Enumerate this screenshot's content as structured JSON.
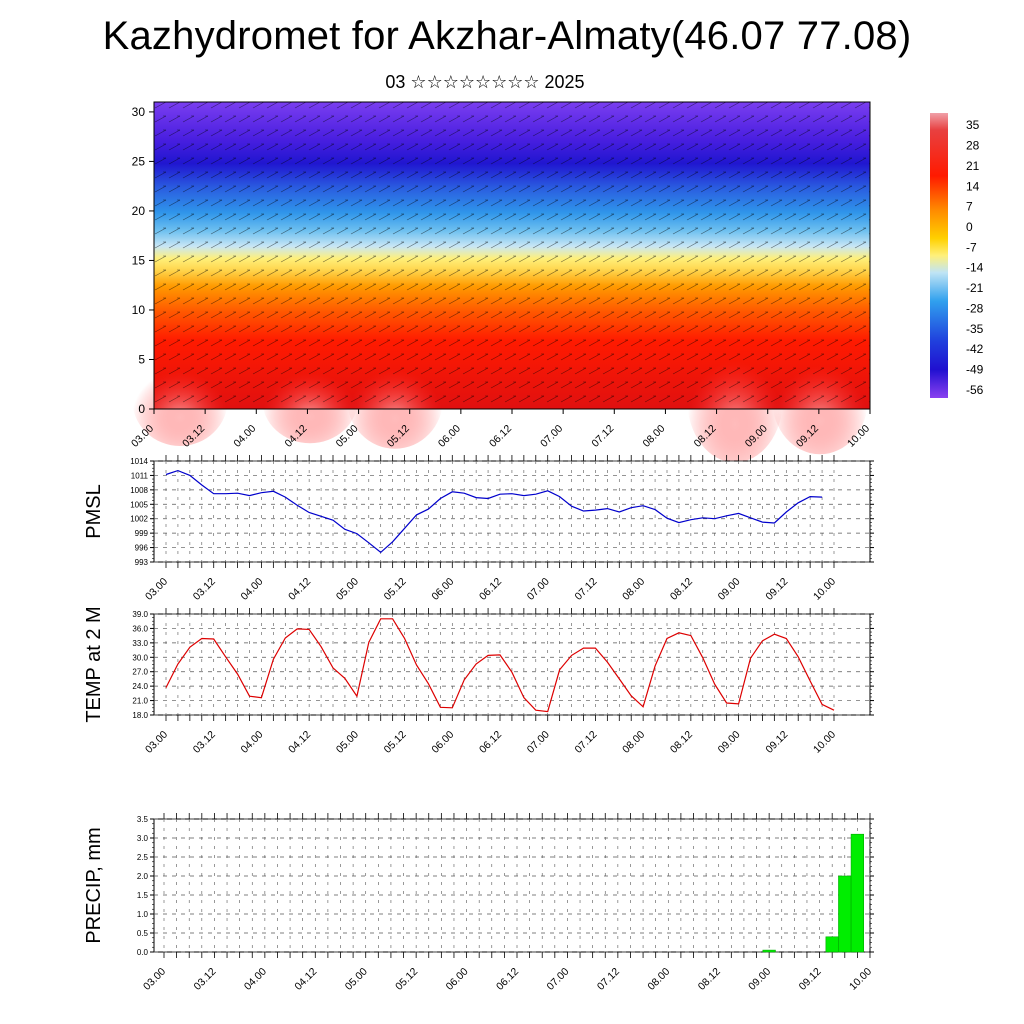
{
  "header": {
    "title": "Kazhydromet for Akzhar-Almaty(46.07 77.08)",
    "subtitle": "03 ☆☆☆☆☆☆☆☆ 2025"
  },
  "time_labels": [
    "03.00",
    "03.12",
    "04.00",
    "04.12",
    "05.00",
    "05.12",
    "06.00",
    "06.12",
    "07.00",
    "07.12",
    "08.00",
    "08.12",
    "09.00",
    "09.12",
    "10.00"
  ],
  "colors": {
    "pmsl_line": "#0000cc",
    "temp_line": "#dd0000",
    "precip_bar": "#00ee00",
    "grid": "#555555"
  },
  "chart_data": [
    {
      "id": "cross_section",
      "type": "heatmap",
      "title": "",
      "xlabel": "",
      "ylabel": "",
      "x_ticks": [
        "03.00",
        "03.12",
        "04.00",
        "04.12",
        "05.00",
        "05.12",
        "06.00",
        "06.12",
        "07.00",
        "07.12",
        "08.00",
        "08.12",
        "09.00",
        "09.12",
        "10.00"
      ],
      "y_ticks": [
        0,
        5,
        10,
        15,
        20,
        25,
        30
      ],
      "ylim": [
        0,
        31
      ],
      "colorbar": {
        "labels": [
          "35",
          "28",
          "21",
          "14",
          "7",
          "0",
          "-7",
          "-14",
          "-21",
          "-28",
          "-35",
          "-42",
          "-49",
          "-56"
        ],
        "range": [
          -60,
          38
        ]
      },
      "overlay": "wind streamlines / vectors"
    },
    {
      "id": "pmsl",
      "type": "line",
      "ylabel": "PMSL",
      "y_ticks": [
        993,
        996,
        999,
        1002,
        1005,
        1008,
        1011,
        1014
      ],
      "ylim": [
        993,
        1014
      ],
      "x_ticks": [
        "03.00",
        "03.12",
        "04.00",
        "04.12",
        "05.00",
        "05.12",
        "06.00",
        "06.12",
        "07.00",
        "07.12",
        "08.00",
        "08.12",
        "09.00",
        "09.12",
        "10.00"
      ],
      "x_step_hours": 3,
      "values": [
        1011.2,
        1012.0,
        1011.0,
        1009.0,
        1007.2,
        1007.2,
        1007.3,
        1006.8,
        1007.4,
        1007.7,
        1006.5,
        1004.8,
        1003.3,
        1002.5,
        1001.7,
        999.8,
        998.9,
        997.0,
        995.0,
        997.2,
        1000.0,
        1002.8,
        1004.0,
        1006.2,
        1007.6,
        1007.3,
        1006.4,
        1006.2,
        1007.1,
        1007.2,
        1006.8,
        1007.1,
        1007.8,
        1006.6,
        1004.6,
        1003.6,
        1003.8,
        1004.1,
        1003.4,
        1004.3,
        1004.7,
        1003.9,
        1002.1,
        1001.2,
        1001.8,
        1002.2,
        1002.0,
        1002.6,
        1003.1,
        1002.2,
        1001.3,
        1001.1,
        1003.4,
        1005.3,
        1006.6,
        1006.5
      ]
    },
    {
      "id": "temp2m",
      "type": "line",
      "ylabel": "TEMP at 2 M",
      "y_ticks": [
        "18.0",
        "21.0",
        "24.0",
        "27.0",
        "30.0",
        "33.0",
        "36.0",
        "39.0"
      ],
      "ylim": [
        18,
        39
      ],
      "x_ticks": [
        "03.00",
        "03.12",
        "04.00",
        "04.12",
        "05.00",
        "05.12",
        "06.00",
        "06.12",
        "07.00",
        "07.12",
        "08.00",
        "08.12",
        "09.00",
        "09.12",
        "10.00"
      ],
      "x_step_hours": 3,
      "values": [
        23.7,
        28.6,
        32.1,
        33.9,
        33.8,
        30.1,
        26.5,
        21.9,
        21.6,
        29.6,
        34.0,
        35.9,
        35.8,
        32.2,
        27.8,
        25.6,
        21.9,
        33.1,
        38.0,
        38.0,
        33.9,
        28.4,
        24.5,
        19.6,
        19.5,
        25.3,
        28.6,
        30.4,
        30.5,
        26.9,
        21.6,
        19.0,
        18.7,
        27.4,
        30.4,
        31.9,
        31.9,
        29.0,
        25.5,
        22.0,
        19.7,
        28.2,
        33.9,
        35.1,
        34.5,
        29.9,
        24.4,
        20.5,
        20.3,
        29.8,
        33.4,
        34.8,
        33.9,
        30.1,
        25.1,
        20.2,
        19.0
      ]
    },
    {
      "id": "precip",
      "type": "bar",
      "ylabel": "PRECIP, mm",
      "y_ticks": [
        "0.0",
        "0.5",
        "1.0",
        "1.5",
        "2.0",
        "2.5",
        "3.0",
        "3.5"
      ],
      "ylim": [
        0,
        3.5
      ],
      "x_ticks": [
        "03.00",
        "03.12",
        "04.00",
        "04.12",
        "05.00",
        "05.12",
        "06.00",
        "06.12",
        "07.00",
        "07.12",
        "08.00",
        "08.12",
        "09.00",
        "09.12",
        "10.00"
      ],
      "x_step_hours": 3,
      "bars": [
        {
          "hour": 144,
          "value": 0.05
        },
        {
          "hour": 159,
          "value": 0.4
        },
        {
          "hour": 162,
          "value": 2.0
        },
        {
          "hour": 165,
          "value": 3.1
        }
      ]
    }
  ]
}
